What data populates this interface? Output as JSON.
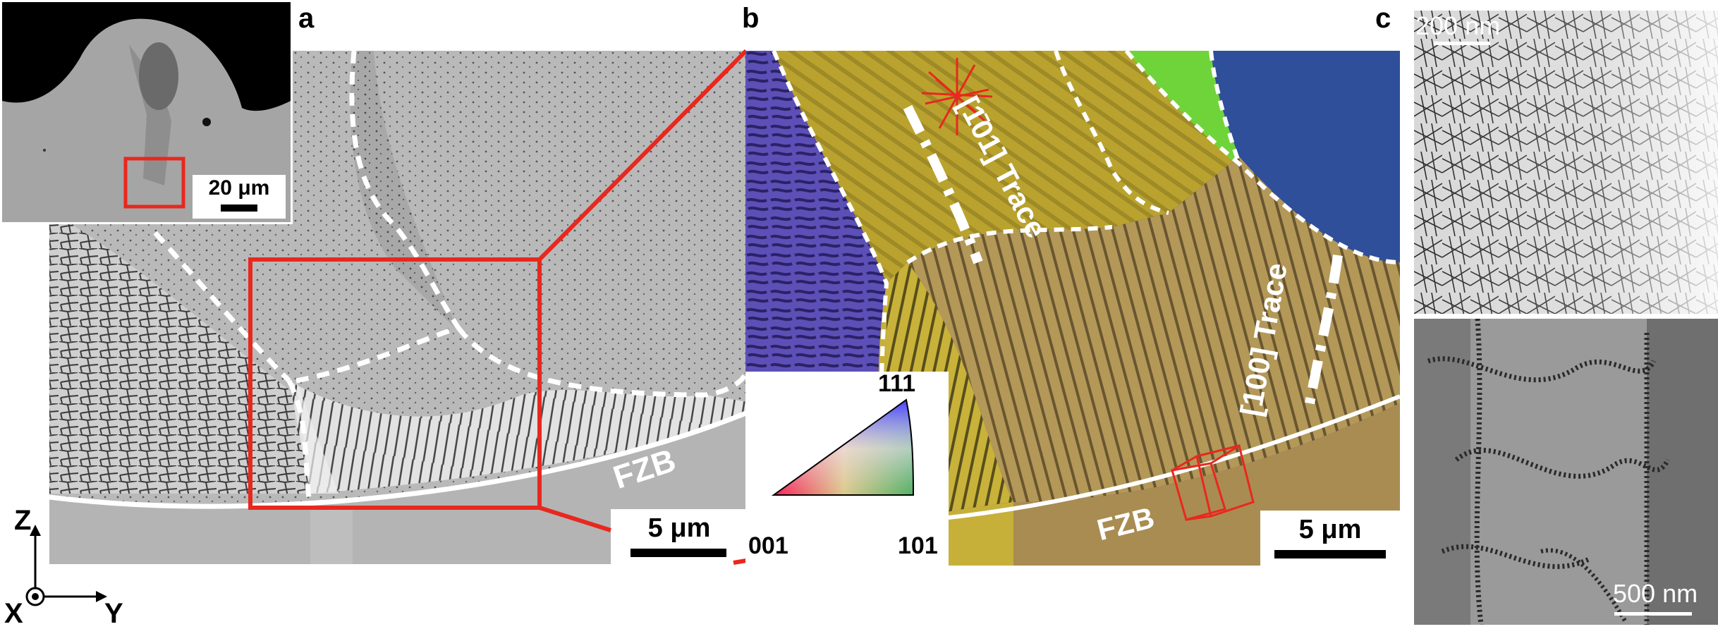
{
  "panels": {
    "a": {
      "letter": "a",
      "fzb_label": "FZB",
      "scale_bar": "5 μm",
      "inset_scale_bar": "20 μm"
    },
    "b": {
      "letter": "b",
      "fzb_label": "FZB",
      "scale_bar": "5 μm",
      "trace_101": "[1̄01] Trace",
      "trace_100": "[100] Trace",
      "ipf": {
        "top": "111",
        "bottom_left": "001",
        "bottom_right": "101"
      }
    },
    "c": {
      "letter": "c",
      "top_scale_bar": "200 nm",
      "bottom_scale_bar": "500 nm"
    }
  },
  "axes": {
    "z": "Z",
    "x": "X",
    "y": "Y"
  },
  "colors": {
    "highlight_red": "#e8281e",
    "boundary_white": "#ffffff",
    "ipf_blue": "#5a4fb0",
    "ipf_yellow": "#c9b23a",
    "ipf_green": "#6fd43a",
    "ipf_navy": "#2f4f9a"
  }
}
